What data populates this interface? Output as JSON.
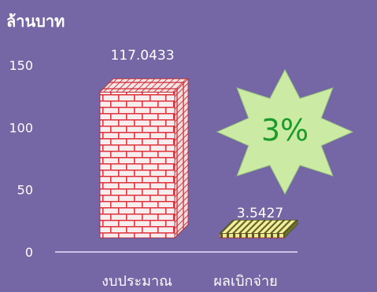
{
  "chart_data": {
    "type": "bar",
    "ylabel": "ล้านบาท",
    "categories": [
      "งบประมาณ",
      "ผลเบิกจ่าย"
    ],
    "values": [
      117.0433,
      3.5427
    ],
    "value_labels": [
      "117.0433",
      "3.5427"
    ],
    "yticks": [
      "0",
      "50",
      "100",
      "150"
    ],
    "ylim": [
      0,
      150
    ],
    "grid": false,
    "annotation": "3%",
    "colors": {
      "background": "#7566A6",
      "bar1_face": "#F6EDEE",
      "bar1_mortar": "#E0303A",
      "bar2_stripe_a": "#F2E88C",
      "bar2_stripe_b": "#555B22",
      "badge_fill": "#CBEAA4",
      "badge_text": "#1C9A2A",
      "axis": "#C9C2E6"
    }
  }
}
